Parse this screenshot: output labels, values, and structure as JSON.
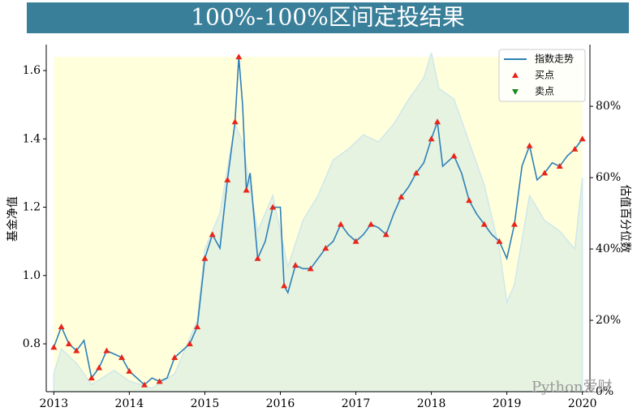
{
  "chart_data": {
    "type": "line",
    "title": "100%-100%区间定投结果",
    "ylabel": "基金净值",
    "y2label": "估值百分位数",
    "watermark": "Python爱财",
    "xlim": [
      2012.9,
      2020.1
    ],
    "xticks": [
      2013,
      2014,
      2015,
      2016,
      2017,
      2018,
      2019,
      2020
    ],
    "ylim": [
      0.66,
      1.676
    ],
    "yticks": [
      0.8,
      {
        "value": 1,
        "label": "1.0"
      },
      1.2,
      1.4,
      1.6
    ],
    "y2lim": [
      0,
      97.3
    ],
    "y2ticks": [
      {
        "value": 0,
        "label": "0%"
      },
      {
        "value": 20,
        "label": "20%"
      },
      {
        "value": 40,
        "label": "40%"
      },
      {
        "value": 60,
        "label": "60%"
      },
      {
        "value": 80,
        "label": "80%"
      }
    ],
    "legend": "upper right",
    "background_color": "#ffffdc",
    "percentile_area": {
      "axis": "y2",
      "color": "#e6f3e0",
      "edge_color": "#cfe8ec",
      "x": [
        2013.0,
        2013.1,
        2013.3,
        2013.5,
        2013.8,
        2014.0,
        2014.3,
        2014.6,
        2014.9,
        2015.0,
        2015.2,
        2015.4,
        2015.5,
        2015.7,
        2015.9,
        2016.1,
        2016.3,
        2016.5,
        2016.7,
        2016.9,
        2017.1,
        2017.3,
        2017.5,
        2017.7,
        2017.9,
        2018.0,
        2018.1,
        2018.3,
        2018.5,
        2018.7,
        2018.9,
        2019.0,
        2019.1,
        2019.3,
        2019.5,
        2019.7,
        2019.9,
        2020.0
      ],
      "values": [
        5,
        12,
        8,
        2,
        6,
        3,
        1,
        5,
        20,
        40,
        50,
        75,
        70,
        45,
        55,
        35,
        48,
        55,
        65,
        68,
        72,
        70,
        75,
        82,
        88,
        95,
        85,
        82,
        70,
        58,
        40,
        25,
        30,
        55,
        48,
        45,
        40,
        60
      ]
    },
    "series": [
      {
        "name": "指数走势",
        "color": "#2e80b8",
        "x": [
          2013.0,
          2013.1,
          2013.2,
          2013.3,
          2013.4,
          2013.5,
          2013.6,
          2013.7,
          2013.8,
          2013.9,
          2014.0,
          2014.1,
          2014.2,
          2014.3,
          2014.4,
          2014.5,
          2014.6,
          2014.7,
          2014.8,
          2014.9,
          2015.0,
          2015.1,
          2015.2,
          2015.3,
          2015.4,
          2015.45,
          2015.5,
          2015.55,
          2015.6,
          2015.7,
          2015.8,
          2015.9,
          2016.0,
          2016.05,
          2016.1,
          2016.2,
          2016.3,
          2016.4,
          2016.5,
          2016.6,
          2016.7,
          2016.8,
          2016.9,
          2017.0,
          2017.1,
          2017.2,
          2017.3,
          2017.4,
          2017.5,
          2017.6,
          2017.7,
          2017.8,
          2017.9,
          2018.0,
          2018.08,
          2018.15,
          2018.3,
          2018.4,
          2018.5,
          2018.6,
          2018.7,
          2018.8,
          2018.9,
          2019.0,
          2019.1,
          2019.2,
          2019.3,
          2019.4,
          2019.5,
          2019.6,
          2019.7,
          2019.8,
          2019.9,
          2020.0
        ],
        "values": [
          0.79,
          0.85,
          0.8,
          0.78,
          0.81,
          0.7,
          0.73,
          0.78,
          0.77,
          0.76,
          0.72,
          0.7,
          0.68,
          0.7,
          0.69,
          0.7,
          0.76,
          0.78,
          0.8,
          0.85,
          1.05,
          1.12,
          1.08,
          1.28,
          1.45,
          1.64,
          1.5,
          1.25,
          1.3,
          1.05,
          1.1,
          1.2,
          1.2,
          0.97,
          0.95,
          1.03,
          1.02,
          1.02,
          1.05,
          1.08,
          1.1,
          1.15,
          1.12,
          1.1,
          1.12,
          1.15,
          1.14,
          1.12,
          1.18,
          1.23,
          1.26,
          1.3,
          1.33,
          1.4,
          1.45,
          1.32,
          1.35,
          1.3,
          1.22,
          1.18,
          1.15,
          1.12,
          1.1,
          1.05,
          1.15,
          1.32,
          1.38,
          1.28,
          1.3,
          1.33,
          1.32,
          1.35,
          1.37,
          1.4
        ]
      },
      {
        "name": "买点",
        "color": "#e8251b",
        "marker": "^",
        "x": [
          2013.0,
          2013.1,
          2013.2,
          2013.3,
          2013.5,
          2013.6,
          2013.7,
          2013.9,
          2014.0,
          2014.2,
          2014.4,
          2014.6,
          2014.8,
          2014.9,
          2015.0,
          2015.1,
          2015.3,
          2015.4,
          2015.45,
          2015.55,
          2015.7,
          2015.9,
          2016.05,
          2016.2,
          2016.4,
          2016.6,
          2016.8,
          2017.0,
          2017.2,
          2017.4,
          2017.6,
          2017.8,
          2018.0,
          2018.08,
          2018.3,
          2018.5,
          2018.7,
          2018.9,
          2019.1,
          2019.3,
          2019.5,
          2019.7,
          2019.9,
          2020.0
        ],
        "values": [
          0.79,
          0.85,
          0.8,
          0.78,
          0.7,
          0.73,
          0.78,
          0.76,
          0.72,
          0.68,
          0.69,
          0.76,
          0.8,
          0.85,
          1.05,
          1.12,
          1.28,
          1.45,
          1.64,
          1.25,
          1.05,
          1.2,
          0.97,
          1.03,
          1.02,
          1.08,
          1.15,
          1.1,
          1.15,
          1.12,
          1.23,
          1.3,
          1.4,
          1.45,
          1.35,
          1.22,
          1.15,
          1.1,
          1.15,
          1.38,
          1.3,
          1.32,
          1.37,
          1.4
        ]
      },
      {
        "name": "卖点",
        "color": "#1a8a1a",
        "marker": "v",
        "x": [],
        "values": []
      }
    ]
  }
}
